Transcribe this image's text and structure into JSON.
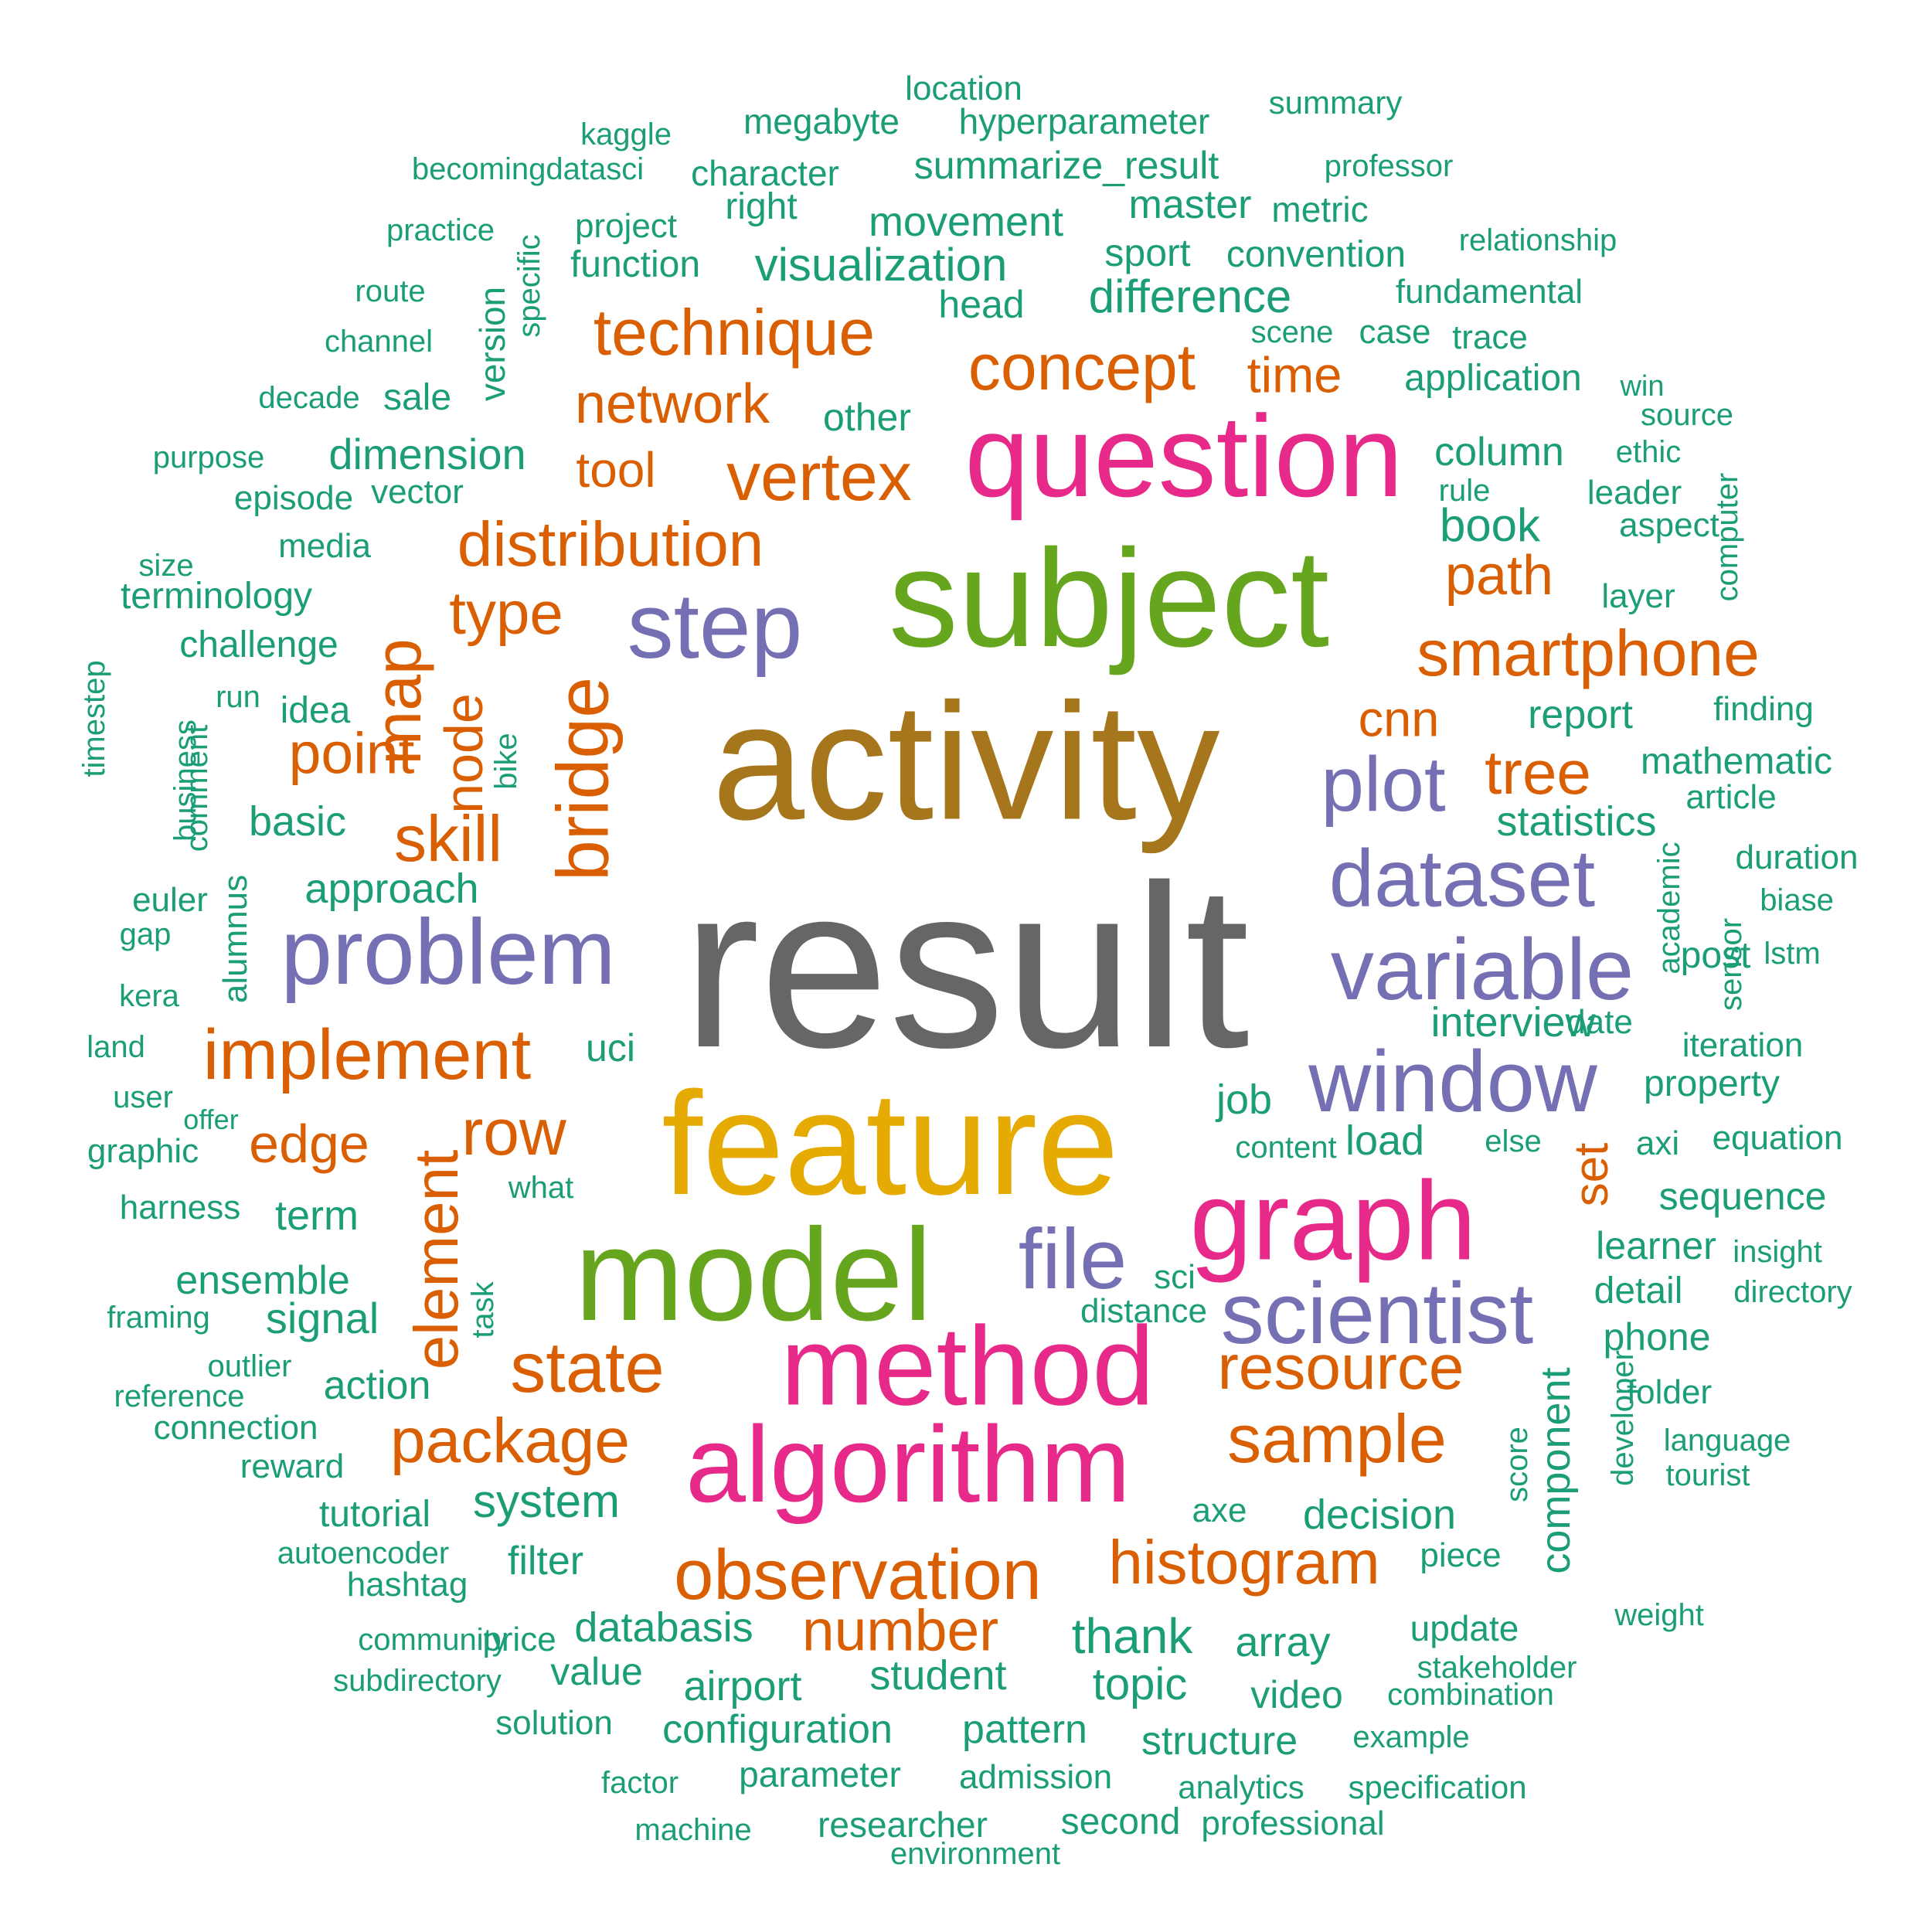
{
  "palette": {
    "teal": "#1b9e77",
    "orange": "#d95f02",
    "purple": "#7570b3",
    "pink": "#e7298a",
    "green": "#66a61e",
    "gold": "#e6ab02",
    "brown": "#a6761d",
    "gray": "#666666"
  },
  "words": [
    {
      "text": "result",
      "color": "gray",
      "vertical": false
    },
    {
      "text": "activity",
      "color": "brown",
      "vertical": false
    },
    {
      "text": "feature",
      "color": "gold",
      "vertical": false
    },
    {
      "text": "subject",
      "color": "green",
      "vertical": false
    },
    {
      "text": "model",
      "color": "green",
      "vertical": false
    },
    {
      "text": "question",
      "color": "pink",
      "vertical": false
    },
    {
      "text": "method",
      "color": "pink",
      "vertical": false
    },
    {
      "text": "algorithm",
      "color": "pink",
      "vertical": false
    },
    {
      "text": "graph",
      "color": "pink",
      "vertical": false
    },
    {
      "text": "step",
      "color": "purple",
      "vertical": false
    },
    {
      "text": "problem",
      "color": "purple",
      "vertical": false
    },
    {
      "text": "variable",
      "color": "purple",
      "vertical": false
    },
    {
      "text": "window",
      "color": "purple",
      "vertical": false
    },
    {
      "text": "dataset",
      "color": "purple",
      "vertical": false
    },
    {
      "text": "scientist",
      "color": "purple",
      "vertical": false
    },
    {
      "text": "plot",
      "color": "purple",
      "vertical": false
    },
    {
      "text": "file",
      "color": "purple",
      "vertical": false
    },
    {
      "text": "technique",
      "color": "orange",
      "vertical": false
    },
    {
      "text": "concept",
      "color": "orange",
      "vertical": false
    },
    {
      "text": "vertex",
      "color": "orange",
      "vertical": false
    },
    {
      "text": "distribution",
      "color": "orange",
      "vertical": false
    },
    {
      "text": "network",
      "color": "orange",
      "vertical": false
    },
    {
      "text": "implement",
      "color": "orange",
      "vertical": false
    },
    {
      "text": "observation",
      "color": "orange",
      "vertical": false
    },
    {
      "text": "histogram",
      "color": "orange",
      "vertical": false
    },
    {
      "text": "smartphone",
      "color": "orange",
      "vertical": false
    },
    {
      "text": "sample",
      "color": "orange",
      "vertical": false
    },
    {
      "text": "resource",
      "color": "orange",
      "vertical": false
    },
    {
      "text": "package",
      "color": "orange",
      "vertical": false
    },
    {
      "text": "state",
      "color": "orange",
      "vertical": false
    },
    {
      "text": "number",
      "color": "orange",
      "vertical": false
    },
    {
      "text": "type",
      "color": "orange",
      "vertical": false
    },
    {
      "text": "skill",
      "color": "orange",
      "vertical": false
    },
    {
      "text": "point",
      "color": "orange",
      "vertical": false
    },
    {
      "text": "bridge",
      "color": "orange",
      "vertical": true
    },
    {
      "text": "map",
      "color": "orange",
      "vertical": true
    },
    {
      "text": "node",
      "color": "orange",
      "vertical": true
    },
    {
      "text": "element",
      "color": "orange",
      "vertical": true
    },
    {
      "text": "set",
      "color": "orange",
      "vertical": true
    },
    {
      "text": "path",
      "color": "orange",
      "vertical": false
    },
    {
      "text": "tree",
      "color": "orange",
      "vertical": false
    },
    {
      "text": "cnn",
      "color": "orange",
      "vertical": false
    },
    {
      "text": "time",
      "color": "orange",
      "vertical": false
    },
    {
      "text": "tool",
      "color": "orange",
      "vertical": false
    },
    {
      "text": "edge",
      "color": "orange",
      "vertical": false
    },
    {
      "text": "row",
      "color": "orange",
      "vertical": false
    },
    {
      "text": "location",
      "color": "teal",
      "vertical": false
    },
    {
      "text": "megabyte",
      "color": "teal",
      "vertical": false
    },
    {
      "text": "hyperparameter",
      "color": "teal",
      "vertical": false
    },
    {
      "text": "summary",
      "color": "teal",
      "vertical": false
    },
    {
      "text": "kaggle",
      "color": "teal",
      "vertical": false
    },
    {
      "text": "becomingdatasci",
      "color": "teal",
      "vertical": false
    },
    {
      "text": "character",
      "color": "teal",
      "vertical": false
    },
    {
      "text": "summarize_result",
      "color": "teal",
      "vertical": false
    },
    {
      "text": "professor",
      "color": "teal",
      "vertical": false
    },
    {
      "text": "right",
      "color": "teal",
      "vertical": false
    },
    {
      "text": "master",
      "color": "teal",
      "vertical": false
    },
    {
      "text": "metric",
      "color": "teal",
      "vertical": false
    },
    {
      "text": "practice",
      "color": "teal",
      "vertical": false
    },
    {
      "text": "specific",
      "color": "teal",
      "vertical": true
    },
    {
      "text": "project",
      "color": "teal",
      "vertical": false
    },
    {
      "text": "movement",
      "color": "teal",
      "vertical": false
    },
    {
      "text": "relationship",
      "color": "teal",
      "vertical": false
    },
    {
      "text": "function",
      "color": "teal",
      "vertical": false
    },
    {
      "text": "visualization",
      "color": "teal",
      "vertical": false
    },
    {
      "text": "sport",
      "color": "teal",
      "vertical": false
    },
    {
      "text": "convention",
      "color": "teal",
      "vertical": false
    },
    {
      "text": "route",
      "color": "teal",
      "vertical": false
    },
    {
      "text": "version",
      "color": "teal",
      "vertical": true
    },
    {
      "text": "head",
      "color": "teal",
      "vertical": false
    },
    {
      "text": "difference",
      "color": "teal",
      "vertical": false
    },
    {
      "text": "fundamental",
      "color": "teal",
      "vertical": false
    },
    {
      "text": "channel",
      "color": "teal",
      "vertical": false
    },
    {
      "text": "scene",
      "color": "teal",
      "vertical": false
    },
    {
      "text": "case",
      "color": "teal",
      "vertical": false
    },
    {
      "text": "trace",
      "color": "teal",
      "vertical": false
    },
    {
      "text": "application",
      "color": "teal",
      "vertical": false
    },
    {
      "text": "win",
      "color": "teal",
      "vertical": false
    },
    {
      "text": "decade",
      "color": "teal",
      "vertical": false
    },
    {
      "text": "sale",
      "color": "teal",
      "vertical": false
    },
    {
      "text": "source",
      "color": "teal",
      "vertical": false
    },
    {
      "text": "other",
      "color": "teal",
      "vertical": false
    },
    {
      "text": "purpose",
      "color": "teal",
      "vertical": false
    },
    {
      "text": "dimension",
      "color": "teal",
      "vertical": false
    },
    {
      "text": "column",
      "color": "teal",
      "vertical": false
    },
    {
      "text": "ethic",
      "color": "teal",
      "vertical": false
    },
    {
      "text": "episode",
      "color": "teal",
      "vertical": false
    },
    {
      "text": "vector",
      "color": "teal",
      "vertical": false
    },
    {
      "text": "rule",
      "color": "teal",
      "vertical": false
    },
    {
      "text": "leader",
      "color": "teal",
      "vertical": false
    },
    {
      "text": "computer",
      "color": "teal",
      "vertical": true
    },
    {
      "text": "media",
      "color": "teal",
      "vertical": false
    },
    {
      "text": "book",
      "color": "teal",
      "vertical": false
    },
    {
      "text": "aspect",
      "color": "teal",
      "vertical": false
    },
    {
      "text": "size",
      "color": "teal",
      "vertical": false
    },
    {
      "text": "terminology",
      "color": "teal",
      "vertical": false
    },
    {
      "text": "layer",
      "color": "teal",
      "vertical": false
    },
    {
      "text": "challenge",
      "color": "teal",
      "vertical": false
    },
    {
      "text": "timestep",
      "color": "teal",
      "vertical": true
    },
    {
      "text": "run",
      "color": "teal",
      "vertical": false
    },
    {
      "text": "idea",
      "color": "teal",
      "vertical": false
    },
    {
      "text": "business",
      "color": "teal",
      "vertical": true
    },
    {
      "text": "comment",
      "color": "teal",
      "vertical": true
    },
    {
      "text": "bike",
      "color": "teal",
      "vertical": true
    },
    {
      "text": "report",
      "color": "teal",
      "vertical": false
    },
    {
      "text": "finding",
      "color": "teal",
      "vertical": false
    },
    {
      "text": "mathematic",
      "color": "teal",
      "vertical": false
    },
    {
      "text": "article",
      "color": "teal",
      "vertical": false
    },
    {
      "text": "basic",
      "color": "teal",
      "vertical": false
    },
    {
      "text": "statistics",
      "color": "teal",
      "vertical": false
    },
    {
      "text": "duration",
      "color": "teal",
      "vertical": false
    },
    {
      "text": "euler",
      "color": "teal",
      "vertical": false
    },
    {
      "text": "alumnus",
      "color": "teal",
      "vertical": true
    },
    {
      "text": "approach",
      "color": "teal",
      "vertical": false
    },
    {
      "text": "academic",
      "color": "teal",
      "vertical": true
    },
    {
      "text": "biase",
      "color": "teal",
      "vertical": false
    },
    {
      "text": "gap",
      "color": "teal",
      "vertical": false
    },
    {
      "text": "sensor",
      "color": "teal",
      "vertical": true
    },
    {
      "text": "post",
      "color": "teal",
      "vertical": false
    },
    {
      "text": "kera",
      "color": "teal",
      "vertical": false
    },
    {
      "text": "lstm",
      "color": "teal",
      "vertical": false
    },
    {
      "text": "interview",
      "color": "teal",
      "vertical": false
    },
    {
      "text": "date",
      "color": "teal",
      "vertical": false
    },
    {
      "text": "land",
      "color": "teal",
      "vertical": false
    },
    {
      "text": "uci",
      "color": "teal",
      "vertical": false
    },
    {
      "text": "iteration",
      "color": "teal",
      "vertical": false
    },
    {
      "text": "user",
      "color": "teal",
      "vertical": false
    },
    {
      "text": "job",
      "color": "teal",
      "vertical": false
    },
    {
      "text": "property",
      "color": "teal",
      "vertical": false
    },
    {
      "text": "offer",
      "color": "teal",
      "vertical": false
    },
    {
      "text": "graphic",
      "color": "teal",
      "vertical": false
    },
    {
      "text": "content",
      "color": "teal",
      "vertical": false
    },
    {
      "text": "load",
      "color": "teal",
      "vertical": false
    },
    {
      "text": "else",
      "color": "teal",
      "vertical": false
    },
    {
      "text": "axi",
      "color": "teal",
      "vertical": false
    },
    {
      "text": "equation",
      "color": "teal",
      "vertical": false
    },
    {
      "text": "what",
      "color": "teal",
      "vertical": false
    },
    {
      "text": "harness",
      "color": "teal",
      "vertical": false
    },
    {
      "text": "term",
      "color": "teal",
      "vertical": false
    },
    {
      "text": "sequence",
      "color": "teal",
      "vertical": false
    },
    {
      "text": "learner",
      "color": "teal",
      "vertical": false
    },
    {
      "text": "insight",
      "color": "teal",
      "vertical": false
    },
    {
      "text": "ensemble",
      "color": "teal",
      "vertical": false
    },
    {
      "text": "task",
      "color": "teal",
      "vertical": true
    },
    {
      "text": "sci",
      "color": "teal",
      "vertical": false
    },
    {
      "text": "detail",
      "color": "teal",
      "vertical": false
    },
    {
      "text": "directory",
      "color": "teal",
      "vertical": false
    },
    {
      "text": "framing",
      "color": "teal",
      "vertical": false
    },
    {
      "text": "signal",
      "color": "teal",
      "vertical": false
    },
    {
      "text": "distance",
      "color": "teal",
      "vertical": false
    },
    {
      "text": "phone",
      "color": "teal",
      "vertical": false
    },
    {
      "text": "outlier",
      "color": "teal",
      "vertical": false
    },
    {
      "text": "action",
      "color": "teal",
      "vertical": false
    },
    {
      "text": "component",
      "color": "teal",
      "vertical": true
    },
    {
      "text": "folder",
      "color": "teal",
      "vertical": false
    },
    {
      "text": "reference",
      "color": "teal",
      "vertical": false
    },
    {
      "text": "connection",
      "color": "teal",
      "vertical": false
    },
    {
      "text": "score",
      "color": "teal",
      "vertical": true
    },
    {
      "text": "developer",
      "color": "teal",
      "vertical": true
    },
    {
      "text": "language",
      "color": "teal",
      "vertical": false
    },
    {
      "text": "reward",
      "color": "teal",
      "vertical": false
    },
    {
      "text": "tourist",
      "color": "teal",
      "vertical": false
    },
    {
      "text": "tutorial",
      "color": "teal",
      "vertical": false
    },
    {
      "text": "system",
      "color": "teal",
      "vertical": false
    },
    {
      "text": "axe",
      "color": "teal",
      "vertical": false
    },
    {
      "text": "decision",
      "color": "teal",
      "vertical": false
    },
    {
      "text": "autoencoder",
      "color": "teal",
      "vertical": false
    },
    {
      "text": "filter",
      "color": "teal",
      "vertical": false
    },
    {
      "text": "piece",
      "color": "teal",
      "vertical": false
    },
    {
      "text": "hashtag",
      "color": "teal",
      "vertical": false
    },
    {
      "text": "weight",
      "color": "teal",
      "vertical": false
    },
    {
      "text": "community",
      "color": "teal",
      "vertical": false
    },
    {
      "text": "price",
      "color": "teal",
      "vertical": false
    },
    {
      "text": "databasis",
      "color": "teal",
      "vertical": false
    },
    {
      "text": "thank",
      "color": "teal",
      "vertical": false
    },
    {
      "text": "array",
      "color": "teal",
      "vertical": false
    },
    {
      "text": "update",
      "color": "teal",
      "vertical": false
    },
    {
      "text": "stakeholder",
      "color": "teal",
      "vertical": false
    },
    {
      "text": "subdirectory",
      "color": "teal",
      "vertical": false
    },
    {
      "text": "value",
      "color": "teal",
      "vertical": false
    },
    {
      "text": "airport",
      "color": "teal",
      "vertical": false
    },
    {
      "text": "student",
      "color": "teal",
      "vertical": false
    },
    {
      "text": "topic",
      "color": "teal",
      "vertical": false
    },
    {
      "text": "video",
      "color": "teal",
      "vertical": false
    },
    {
      "text": "combination",
      "color": "teal",
      "vertical": false
    },
    {
      "text": "solution",
      "color": "teal",
      "vertical": false
    },
    {
      "text": "configuration",
      "color": "teal",
      "vertical": false
    },
    {
      "text": "pattern",
      "color": "teal",
      "vertical": false
    },
    {
      "text": "structure",
      "color": "teal",
      "vertical": false
    },
    {
      "text": "example",
      "color": "teal",
      "vertical": false
    },
    {
      "text": "factor",
      "color": "teal",
      "vertical": false
    },
    {
      "text": "parameter",
      "color": "teal",
      "vertical": false
    },
    {
      "text": "admission",
      "color": "teal",
      "vertical": false
    },
    {
      "text": "analytics",
      "color": "teal",
      "vertical": false
    },
    {
      "text": "specification",
      "color": "teal",
      "vertical": false
    },
    {
      "text": "machine",
      "color": "teal",
      "vertical": false
    },
    {
      "text": "researcher",
      "color": "teal",
      "vertical": false
    },
    {
      "text": "second",
      "color": "teal",
      "vertical": false
    },
    {
      "text": "professional",
      "color": "teal",
      "vertical": false
    },
    {
      "text": "environment",
      "color": "teal",
      "vertical": false
    }
  ]
}
